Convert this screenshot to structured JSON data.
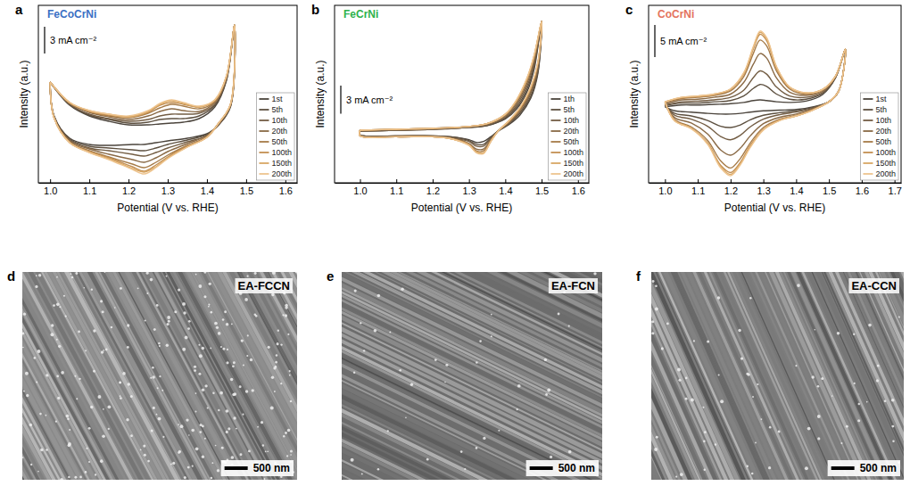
{
  "chart_data": [
    {
      "type": "line",
      "panel_label": "a",
      "title": "FeCoCrNi",
      "x_label": "Potential (V vs. RHE)",
      "y_label": "Intensity (a.u.)",
      "xlim": [
        0.97,
        1.63
      ],
      "xticks": [
        {
          "value": 1,
          "label": "1.0"
        },
        1.1,
        1.2,
        1.3,
        1.4,
        1.5,
        1.6
      ],
      "ylim": [
        -5.5,
        14.4
      ],
      "tick_labels": "x",
      "legend": "lower right",
      "scale_bar": {
        "value": 3,
        "label": "3 mA cm⁻²"
      },
      "x": [
        1.0,
        1.05,
        1.1,
        1.15,
        1.2,
        1.25,
        1.28,
        1.31,
        1.34,
        1.38,
        1.42,
        1.45,
        1.47,
        1.46,
        1.43,
        1.4,
        1.35,
        1.3,
        1.27,
        1.24,
        1.21,
        1.15,
        1.1,
        1.05,
        1.01,
        1.0
      ],
      "series": [
        {
          "name": "1st",
          "color": "#4b443c",
          "values": [
            5.8,
            3.2,
            2.0,
            1.4,
            1.0,
            1.0,
            1.1,
            1.2,
            1.3,
            1.7,
            3.0,
            6.0,
            12.2,
            3.0,
            1.0,
            0.0,
            -0.5,
            -0.8,
            -1.0,
            -1.2,
            -1.2,
            -1.3,
            -1.2,
            -0.5,
            2.0,
            5.8
          ]
        },
        {
          "name": "5th",
          "color": "#5d5040",
          "values": [
            5.8,
            3.3,
            2.1,
            1.6,
            1.2,
            1.3,
            1.6,
            1.7,
            1.7,
            2.0,
            3.2,
            6.1,
            12.2,
            3.1,
            1.0,
            -0.1,
            -0.7,
            -1.2,
            -1.6,
            -1.9,
            -1.8,
            -1.6,
            -1.4,
            -0.6,
            2.0,
            5.8
          ]
        },
        {
          "name": "10th",
          "color": "#735d44",
          "values": [
            5.8,
            3.3,
            2.2,
            1.7,
            1.4,
            1.6,
            2.0,
            2.2,
            2.2,
            2.3,
            3.3,
            6.2,
            12.2,
            3.1,
            1.1,
            -0.2,
            -0.9,
            -1.6,
            -2.1,
            -2.5,
            -2.3,
            -1.9,
            -1.6,
            -0.7,
            1.9,
            5.8
          ]
        },
        {
          "name": "20th",
          "color": "#8a6a46",
          "values": [
            5.8,
            3.4,
            2.4,
            1.9,
            1.6,
            2.0,
            2.5,
            2.8,
            2.6,
            2.5,
            3.5,
            6.3,
            12.2,
            3.2,
            1.1,
            -0.2,
            -1.1,
            -2.0,
            -2.7,
            -3.2,
            -2.9,
            -2.3,
            -1.7,
            -0.8,
            1.9,
            5.8
          ]
        },
        {
          "name": "50th",
          "color": "#a67b48",
          "values": [
            5.8,
            3.4,
            2.5,
            2.0,
            1.8,
            2.3,
            2.9,
            3.3,
            3.1,
            2.8,
            3.6,
            6.4,
            12.2,
            3.2,
            1.2,
            -0.3,
            -1.3,
            -2.4,
            -3.2,
            -3.8,
            -3.4,
            -2.6,
            -1.9,
            -0.9,
            1.8,
            5.8
          ]
        },
        {
          "name": "100th",
          "color": "#c38f52",
          "values": [
            5.8,
            3.5,
            2.5,
            2.1,
            1.9,
            2.4,
            3.2,
            3.5,
            3.3,
            3.0,
            3.7,
            6.5,
            12.2,
            3.3,
            1.2,
            -0.4,
            -1.4,
            -2.6,
            -3.5,
            -4.2,
            -3.7,
            -2.7,
            -2.0,
            -1.0,
            1.8,
            5.8
          ]
        },
        {
          "name": "150th",
          "color": "#d9a865",
          "values": [
            5.8,
            3.5,
            2.6,
            2.2,
            1.9,
            2.5,
            3.3,
            3.7,
            3.4,
            3.0,
            3.8,
            6.5,
            12.2,
            3.3,
            1.2,
            -0.4,
            -1.5,
            -2.7,
            -3.7,
            -4.3,
            -3.9,
            -2.8,
            -2.1,
            -1.0,
            1.8,
            5.8
          ]
        },
        {
          "name": "200th",
          "color": "#eec48f",
          "values": [
            5.8,
            3.5,
            2.6,
            2.2,
            2.0,
            2.6,
            3.4,
            3.8,
            3.5,
            3.1,
            3.8,
            6.5,
            12.2,
            3.3,
            1.2,
            -0.4,
            -1.5,
            -2.8,
            -3.8,
            -4.5,
            -4.0,
            -2.9,
            -2.1,
            -1.0,
            1.8,
            5.8
          ]
        }
      ]
    },
    {
      "type": "line",
      "panel_label": "b",
      "title": "FeCrNi",
      "x_label": "Potential (V vs. RHE)",
      "y_label": "Intensity (a.u.)",
      "xlim": [
        0.93,
        1.63
      ],
      "xticks": [
        {
          "value": 1,
          "label": "1.0"
        },
        1.1,
        1.2,
        1.3,
        1.4,
        1.5,
        1.6
      ],
      "ylim": [
        -5.2,
        13.7
      ],
      "tick_labels": "x",
      "legend": "lower right",
      "scale_bar": {
        "value": 3,
        "label": "3 mA cm⁻²"
      },
      "x": [
        1.0,
        1.1,
        1.2,
        1.3,
        1.35,
        1.4,
        1.43,
        1.46,
        1.48,
        1.5,
        1.49,
        1.47,
        1.44,
        1.41,
        1.38,
        1.36,
        1.34,
        1.32,
        1.3,
        1.25,
        1.2,
        1.1,
        1.0,
        1.0
      ],
      "series": [
        {
          "name": "1th",
          "color": "#4b443c",
          "values": [
            0.3,
            0.4,
            0.5,
            0.7,
            0.9,
            1.6,
            2.6,
            4.5,
            7.0,
            12.0,
            6.5,
            3.8,
            2.0,
            1.0,
            0.3,
            -0.3,
            -0.8,
            -0.9,
            -0.6,
            -0.3,
            -0.2,
            -0.2,
            -0.1,
            0.3
          ]
        },
        {
          "name": "5th",
          "color": "#5d5040",
          "values": [
            0.3,
            0.4,
            0.5,
            0.7,
            0.9,
            1.7,
            2.8,
            4.8,
            7.3,
            12.0,
            6.7,
            4.0,
            2.2,
            1.1,
            0.3,
            -0.4,
            -1.1,
            -1.1,
            -0.7,
            -0.3,
            -0.2,
            -0.2,
            -0.1,
            0.3
          ]
        },
        {
          "name": "10th",
          "color": "#735d44",
          "values": [
            0.3,
            0.4,
            0.5,
            0.7,
            1.0,
            1.8,
            3.0,
            5.1,
            7.6,
            12.0,
            7.0,
            4.3,
            2.3,
            1.2,
            0.3,
            -0.5,
            -1.3,
            -1.3,
            -0.8,
            -0.4,
            -0.2,
            -0.2,
            -0.1,
            0.3
          ]
        },
        {
          "name": "20th",
          "color": "#8a6a46",
          "values": [
            0.4,
            0.5,
            0.6,
            0.8,
            1.0,
            1.9,
            3.2,
            5.4,
            7.9,
            12.0,
            7.2,
            4.5,
            2.5,
            1.2,
            0.3,
            -0.6,
            -1.6,
            -1.6,
            -1.0,
            -0.4,
            -0.3,
            -0.3,
            -0.2,
            0.4
          ]
        },
        {
          "name": "50th",
          "color": "#a67b48",
          "values": [
            0.4,
            0.5,
            0.6,
            0.8,
            1.1,
            2.0,
            3.4,
            5.7,
            8.2,
            12.0,
            7.5,
            4.8,
            2.6,
            1.3,
            0.3,
            -0.7,
            -1.8,
            -1.8,
            -1.1,
            -0.5,
            -0.3,
            -0.3,
            -0.2,
            0.4
          ]
        },
        {
          "name": "100th",
          "color": "#c38f52",
          "values": [
            0.4,
            0.5,
            0.6,
            0.8,
            1.1,
            2.1,
            3.5,
            5.9,
            8.4,
            12.0,
            7.6,
            4.9,
            2.7,
            1.4,
            0.3,
            -0.8,
            -2.0,
            -1.9,
            -1.1,
            -0.5,
            -0.3,
            -0.3,
            -0.2,
            0.4
          ]
        },
        {
          "name": "150th",
          "color": "#d9a865",
          "values": [
            0.4,
            0.5,
            0.6,
            0.8,
            1.1,
            2.1,
            3.5,
            5.9,
            8.4,
            12.0,
            7.6,
            4.9,
            2.8,
            1.4,
            0.3,
            -0.8,
            -2.0,
            -1.9,
            -1.2,
            -0.5,
            -0.3,
            -0.3,
            -0.2,
            0.4
          ]
        },
        {
          "name": "200th",
          "color": "#eec48f",
          "values": [
            0.4,
            0.5,
            0.6,
            0.8,
            1.1,
            2.1,
            3.6,
            6.0,
            8.5,
            12.0,
            7.7,
            5.0,
            2.8,
            1.4,
            0.3,
            -0.8,
            -2.1,
            -2.0,
            -1.2,
            -0.5,
            -0.3,
            -0.3,
            -0.2,
            0.4
          ]
        }
      ]
    },
    {
      "type": "line",
      "panel_label": "c",
      "title": "CoCrNi",
      "x_label": "Potential (V vs. RHE)",
      "y_label": "Intensity (a.u.)",
      "xlim": [
        0.95,
        1.72
      ],
      "xticks": [
        {
          "value": 1,
          "label": "1.0"
        },
        1.1,
        1.2,
        1.3,
        1.4,
        1.5,
        1.6,
        1.7
      ],
      "ylim": [
        -11.8,
        15.8
      ],
      "tick_labels": "x",
      "legend": "lower right",
      "scale_bar": {
        "value": 5,
        "label": "5 mA cm⁻²"
      },
      "x": [
        1.0,
        1.05,
        1.1,
        1.15,
        1.2,
        1.24,
        1.27,
        1.29,
        1.31,
        1.34,
        1.38,
        1.43,
        1.48,
        1.52,
        1.55,
        1.53,
        1.5,
        1.45,
        1.4,
        1.35,
        1.3,
        1.26,
        1.23,
        1.2,
        1.17,
        1.13,
        1.08,
        1.03,
        1.0
      ],
      "series": [
        {
          "name": "1st",
          "color": "#4b443c",
          "values": [
            0,
            0.3,
            0.3,
            0.4,
            0.5,
            0.7,
            1.0,
            1.1,
            1.0,
            0.8,
            0.7,
            0.9,
            1.9,
            4.5,
            9.0,
            2.5,
            0.8,
            0,
            -0.4,
            -0.5,
            -0.6,
            -0.8,
            -1.0,
            -1.1,
            -1.1,
            -1.0,
            -0.8,
            -0.6,
            0
          ]
        },
        {
          "name": "5th",
          "color": "#5d5040",
          "values": [
            0.2,
            0.6,
            0.6,
            0.8,
            1.0,
            1.7,
            2.9,
            3.5,
            3.2,
            2.0,
            1.2,
            1.2,
            2.1,
            4.6,
            9.0,
            2.5,
            0.8,
            -0.1,
            -0.6,
            -0.9,
            -1.3,
            -2.0,
            -2.8,
            -3.2,
            -3.0,
            -2.1,
            -1.4,
            -1.0,
            0.2
          ]
        },
        {
          "name": "10th",
          "color": "#735d44",
          "values": [
            0.3,
            0.8,
            0.9,
            1.1,
            1.5,
            2.6,
            4.6,
            5.6,
            5.1,
            3.1,
            1.7,
            1.5,
            2.2,
            4.6,
            9.0,
            2.5,
            0.8,
            -0.2,
            -0.8,
            -1.2,
            -1.9,
            -3.1,
            -4.4,
            -5.1,
            -4.6,
            -3.0,
            -1.9,
            -1.3,
            0.3
          ]
        },
        {
          "name": "20th",
          "color": "#8a6a46",
          "values": [
            0.5,
            1.1,
            1.2,
            1.5,
            2.0,
            3.8,
            6.7,
            8.3,
            7.6,
            4.5,
            2.3,
            1.8,
            2.4,
            4.7,
            9.0,
            2.5,
            0.8,
            -0.3,
            -1.1,
            -1.6,
            -2.6,
            -4.5,
            -6.4,
            -7.5,
            -6.7,
            -4.2,
            -2.5,
            -1.7,
            0.5
          ]
        },
        {
          "name": "50th",
          "color": "#a67b48",
          "values": [
            0.7,
            1.3,
            1.5,
            1.8,
            2.5,
            4.7,
            8.4,
            10.4,
            9.5,
            5.6,
            2.8,
            2.0,
            2.6,
            4.8,
            9.0,
            2.5,
            0.8,
            -0.4,
            -1.3,
            -1.9,
            -3.2,
            -5.6,
            -8.0,
            -9.5,
            -8.4,
            -5.2,
            -3.1,
            -2.0,
            0.7
          ]
        },
        {
          "name": "100th",
          "color": "#c38f52",
          "values": [
            0.8,
            1.4,
            1.6,
            1.9,
            2.7,
            5.1,
            9.1,
            11.3,
            10.3,
            6.0,
            3.0,
            2.1,
            2.7,
            4.8,
            9.0,
            2.5,
            0.8,
            -0.5,
            -1.4,
            -2.0,
            -3.5,
            -6.0,
            -8.6,
            -10.2,
            -9.1,
            -5.6,
            -3.3,
            -2.1,
            0.8
          ]
        },
        {
          "name": "150th",
          "color": "#d9a865",
          "values": [
            0.8,
            1.5,
            1.7,
            2.0,
            2.8,
            5.2,
            9.3,
            11.6,
            10.6,
            6.2,
            3.1,
            2.2,
            2.7,
            4.8,
            9.0,
            2.5,
            0.8,
            -0.5,
            -1.4,
            -2.1,
            -3.5,
            -6.2,
            -8.8,
            -10.5,
            -9.3,
            -5.7,
            -3.3,
            -2.2,
            0.8
          ]
        },
        {
          "name": "200th",
          "color": "#eec48f",
          "values": [
            0.8,
            1.5,
            1.7,
            2.0,
            2.8,
            5.3,
            9.5,
            11.8,
            10.8,
            6.3,
            3.1,
            2.2,
            2.7,
            4.8,
            9.0,
            2.5,
            0.8,
            -0.5,
            -1.4,
            -2.1,
            -3.6,
            -6.3,
            -9.0,
            -10.7,
            -9.5,
            -5.8,
            -3.4,
            -2.2,
            0.8
          ]
        }
      ]
    }
  ],
  "images": [
    {
      "panel_label": "d",
      "label": "EA-FCCN",
      "scale_bar": "500 nm"
    },
    {
      "panel_label": "e",
      "label": "EA-FCN",
      "scale_bar": "500 nm"
    },
    {
      "panel_label": "f",
      "label": "EA-CCN",
      "scale_bar": "500 nm"
    }
  ]
}
